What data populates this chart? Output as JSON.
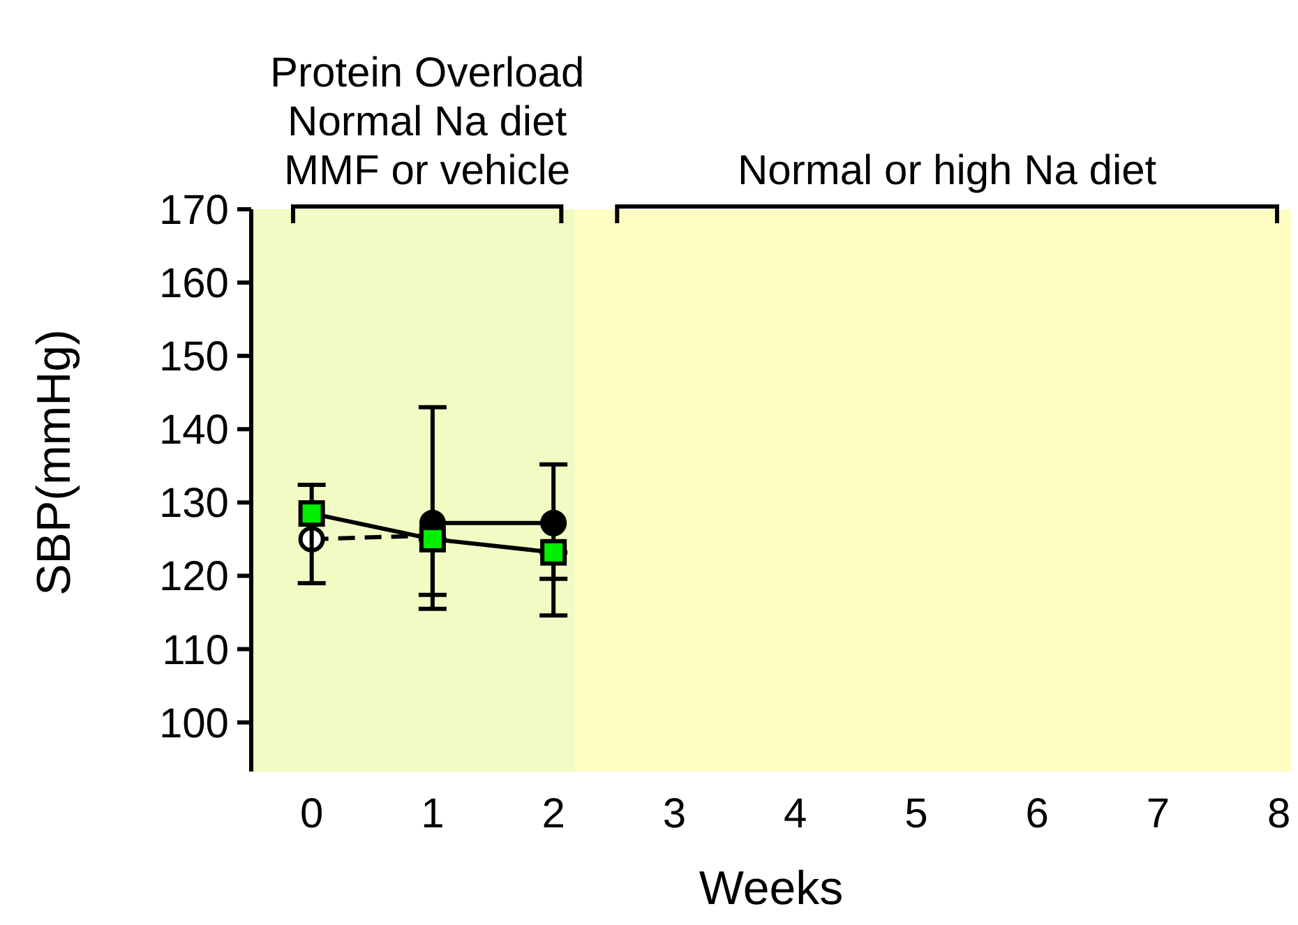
{
  "chart_data": {
    "type": "line",
    "xlabel": "Weeks",
    "ylabel": "SBP(mmHg)",
    "x": [
      0,
      1,
      2
    ],
    "xlim": [
      -0.5,
      8.1
    ],
    "xticks": [
      0,
      1,
      2,
      3,
      4,
      5,
      6,
      7,
      8
    ],
    "ylim": [
      93.3,
      170
    ],
    "yticks": [
      100,
      110,
      120,
      130,
      140,
      150,
      160,
      170
    ],
    "grid": false,
    "series": [
      {
        "color": "#000000",
        "marker": "circle",
        "line_style": "solid",
        "values": [
          null,
          127.2,
          127.2
        ],
        "errors": [
          null,
          [
            117.4,
            143
          ],
          [
            119.6,
            135.2
          ]
        ]
      },
      {
        "color": "#ffffff",
        "marker": "circle",
        "line_style": "dashed",
        "values": [
          125,
          125.5,
          null
        ],
        "errors": [
          null,
          null,
          null
        ]
      },
      {
        "color": "#00ee00",
        "marker": "square",
        "line_style": "solid",
        "values": [
          128.5,
          125,
          123.2
        ],
        "errors": [
          [
            119,
            132.4
          ],
          [
            115.5,
            125
          ],
          [
            114.6,
            123.2
          ]
        ]
      }
    ],
    "bands": [
      {
        "axis": "x",
        "from": -0.5,
        "to": 2.18,
        "color": "#f1fbc4",
        "label": "Protein Overload\nNormal Na diet\nMMF or vehicle"
      },
      {
        "axis": "x",
        "from": 2.18,
        "to": 8.1,
        "color": "#fefdc4",
        "label": "Normal or high Na diet"
      }
    ]
  }
}
